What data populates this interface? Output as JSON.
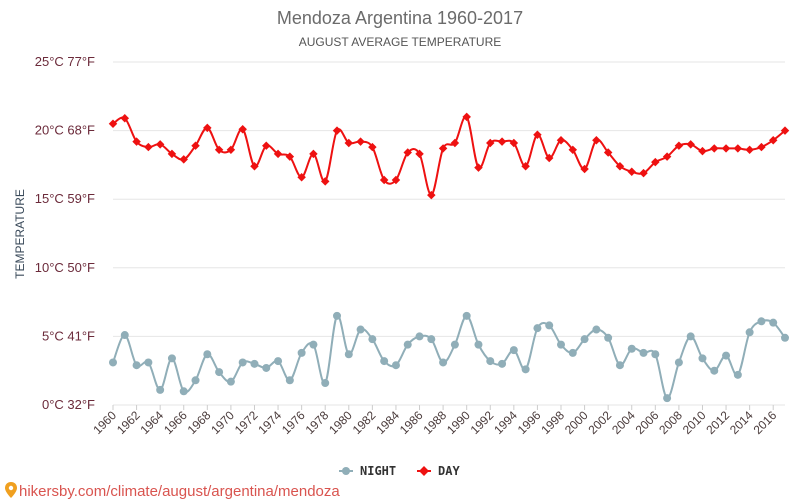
{
  "chart_data": {
    "type": "line",
    "title": "Mendoza Argentina 1960-2017",
    "subtitle": "AUGUST AVERAGE TEMPERATURE",
    "ylabel": "TEMPERATURE",
    "xlabel": "",
    "ylim": [
      0,
      25
    ],
    "xlim": [
      1960,
      2017
    ],
    "yticks": [
      {
        "value": 0,
        "label": "0°C 32°F"
      },
      {
        "value": 5,
        "label": "5°C 41°F"
      },
      {
        "value": 10,
        "label": "10°C 50°F"
      },
      {
        "value": 15,
        "label": "15°C 59°F"
      },
      {
        "value": 20,
        "label": "20°C 68°F"
      },
      {
        "value": 25,
        "label": "25°C 77°F"
      }
    ],
    "xticks": [
      1960,
      1962,
      1964,
      1966,
      1968,
      1970,
      1972,
      1974,
      1976,
      1978,
      1980,
      1982,
      1984,
      1986,
      1988,
      1990,
      1992,
      1994,
      1996,
      1998,
      2000,
      2002,
      2004,
      2006,
      2008,
      2010,
      2012,
      2014,
      2016
    ],
    "grid": true,
    "legend_position": "bottom-center",
    "x": [
      1960,
      1961,
      1962,
      1963,
      1964,
      1965,
      1966,
      1967,
      1968,
      1969,
      1970,
      1971,
      1972,
      1973,
      1974,
      1975,
      1976,
      1977,
      1978,
      1979,
      1980,
      1981,
      1982,
      1983,
      1984,
      1985,
      1986,
      1987,
      1988,
      1989,
      1990,
      1991,
      1992,
      1993,
      1994,
      1995,
      1996,
      1997,
      1998,
      1999,
      2000,
      2001,
      2002,
      2003,
      2004,
      2005,
      2006,
      2007,
      2008,
      2009,
      2010,
      2011,
      2012,
      2013,
      2014,
      2015,
      2016,
      2017
    ],
    "series": [
      {
        "name": "NIGHT",
        "color": "#90aeb8",
        "marker": "circle",
        "values": [
          3.1,
          5.1,
          2.9,
          3.1,
          1.1,
          3.4,
          1.0,
          1.8,
          3.7,
          2.4,
          1.7,
          3.1,
          3.0,
          2.7,
          3.2,
          1.8,
          3.8,
          4.4,
          1.6,
          6.5,
          3.7,
          5.5,
          4.8,
          3.2,
          2.9,
          4.4,
          5.0,
          4.8,
          3.1,
          4.4,
          6.5,
          4.4,
          3.2,
          3.0,
          4.0,
          2.6,
          5.6,
          5.8,
          4.4,
          3.8,
          4.8,
          5.5,
          4.9,
          2.9,
          4.1,
          3.8,
          3.7,
          0.5,
          3.1,
          5.0,
          3.4,
          2.5,
          3.6,
          2.2,
          5.3,
          6.1,
          6.0,
          4.9
        ]
      },
      {
        "name": "DAY",
        "color": "#ee1111",
        "marker": "diamond",
        "values": [
          20.5,
          20.9,
          19.2,
          18.8,
          19.0,
          18.3,
          17.9,
          18.9,
          20.2,
          18.6,
          18.6,
          20.1,
          17.4,
          18.9,
          18.3,
          18.1,
          16.6,
          18.3,
          16.3,
          20.0,
          19.1,
          19.2,
          18.8,
          16.4,
          16.4,
          18.4,
          18.3,
          15.3,
          18.7,
          19.1,
          21.0,
          17.3,
          19.1,
          19.2,
          19.1,
          17.4,
          19.7,
          18.0,
          19.3,
          18.6,
          17.2,
          19.3,
          18.4,
          17.4,
          17.0,
          16.9,
          17.7,
          18.1,
          18.9,
          19.0,
          18.5,
          18.7,
          18.7,
          18.7,
          18.6,
          18.8,
          19.3,
          20.0
        ]
      }
    ]
  },
  "source": {
    "pin_icon": "map-pin-icon",
    "text": "hikersby.com/climate/august/argentina/mendoza"
  }
}
